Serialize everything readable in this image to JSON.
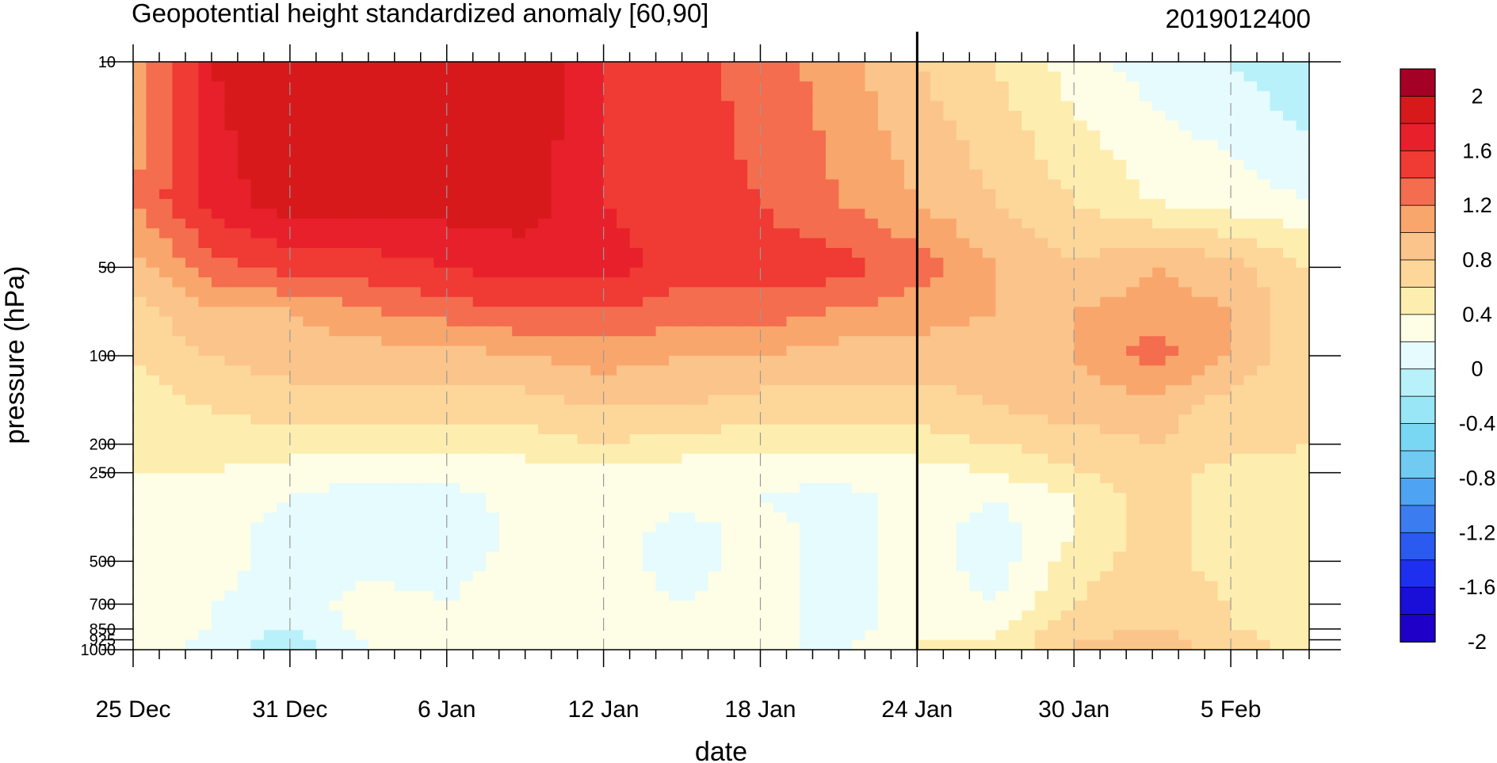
{
  "chart_data": {
    "type": "heatmap",
    "title": "Geopotential height standardized anomaly [60,90]",
    "run_label": "2019012400",
    "xlabel": "date",
    "ylabel": "pressure (hPa)",
    "y_scale": "log",
    "y_reversed": true,
    "ylim": [
      1000,
      10
    ],
    "x_tick_labels": [
      {
        "day": 0,
        "label": "25 Dec"
      },
      {
        "day": 6,
        "label": "31 Dec"
      },
      {
        "day": 12,
        "label": "6 Jan"
      },
      {
        "day": 18,
        "label": "12 Jan"
      },
      {
        "day": 24,
        "label": "18 Jan"
      },
      {
        "day": 30,
        "label": "24 Jan"
      },
      {
        "day": 36,
        "label": "30 Jan"
      },
      {
        "day": 42,
        "label": "5 Feb"
      }
    ],
    "xlim_days": [
      0,
      45
    ],
    "y_ticks": [
      10,
      50,
      100,
      200,
      250,
      500,
      700,
      850,
      925,
      1000
    ],
    "y_tick_labels": [
      "10",
      "50",
      "100",
      "200",
      "250",
      "500",
      "700",
      "850",
      "925",
      "1000"
    ],
    "analysis_marker_day": 30,
    "contour_levels": [
      -2,
      -1.8,
      -1.6,
      -1.4,
      -1.2,
      -1,
      -0.8,
      -0.6,
      -0.4,
      -0.2,
      0,
      0.2,
      0.4,
      0.6,
      0.8,
      1,
      1.2,
      1.4,
      1.6,
      1.8,
      2
    ],
    "colorbar": {
      "label_values": [
        "2",
        "1.6",
        "1.2",
        "0.8",
        "0.4",
        "0",
        "-0.4",
        "-0.8",
        "-1.2",
        "-1.6",
        "-2"
      ],
      "colors": [
        "#a50026",
        "#d7191c",
        "#e8202b",
        "#f03a34",
        "#f46d4e",
        "#f9a66c",
        "#fbc48a",
        "#fdd699",
        "#fdeeb0",
        "#fefde6",
        "#e5fbfd",
        "#b9f1fa",
        "#98e6f6",
        "#7ad7f4",
        "#70caf2",
        "#4ea4f2",
        "#3b7df0",
        "#2a5af0",
        "#1e2ff0",
        "#1a0fd8",
        "#1f00c8"
      ]
    },
    "field_pressure_levels": [
      10,
      30,
      50,
      70,
      100,
      150,
      200,
      250,
      300,
      400,
      500,
      700,
      850,
      925,
      1000
    ],
    "field_days": [
      0,
      3,
      6,
      9,
      12,
      15,
      18,
      21,
      24,
      27,
      30,
      33,
      36,
      39,
      42,
      45
    ],
    "field_values": [
      [
        0.8,
        1.6,
        1.8,
        1.8,
        1.8,
        1.8,
        1.4,
        1.3,
        1.1,
        0.9,
        0.6,
        0.4,
        0.1,
        -0.1,
        -0.2,
        -0.4
      ],
      [
        1.0,
        1.5,
        1.7,
        1.7,
        1.7,
        1.7,
        1.4,
        1.3,
        1.2,
        1.0,
        0.8,
        0.6,
        0.4,
        0.2,
        0.1,
        0.0
      ],
      [
        0.7,
        1.1,
        1.3,
        1.3,
        1.4,
        1.5,
        1.5,
        1.3,
        1.3,
        1.3,
        1.1,
        0.8,
        0.6,
        0.8,
        0.7,
        0.4
      ],
      [
        0.5,
        0.8,
        0.8,
        1.0,
        1.1,
        1.2,
        1.2,
        1.1,
        1.1,
        1.0,
        0.9,
        0.8,
        0.8,
        0.9,
        0.8,
        0.4
      ],
      [
        0.4,
        0.6,
        0.7,
        0.7,
        0.7,
        0.8,
        0.9,
        0.8,
        0.8,
        0.7,
        0.7,
        0.7,
        0.8,
        1.1,
        0.8,
        0.4
      ],
      [
        0.3,
        0.4,
        0.5,
        0.5,
        0.5,
        0.5,
        0.6,
        0.6,
        0.5,
        0.5,
        0.5,
        0.6,
        0.7,
        0.7,
        0.5,
        0.4
      ],
      [
        0.2,
        0.3,
        0.3,
        0.3,
        0.3,
        0.3,
        0.4,
        0.3,
        0.3,
        0.3,
        0.3,
        0.4,
        0.5,
        0.6,
        0.5,
        0.4
      ],
      [
        0.2,
        0.2,
        0.1,
        0.1,
        0.1,
        0.1,
        0.1,
        0.1,
        0.1,
        0.1,
        0.1,
        0.2,
        0.4,
        0.5,
        0.3,
        0.3
      ],
      [
        0.2,
        0.1,
        0.0,
        -0.1,
        -0.1,
        0.1,
        0.2,
        0.1,
        0.0,
        -0.1,
        0.1,
        0.0,
        0.2,
        0.5,
        0.3,
        0.2
      ],
      [
        0.2,
        0.1,
        -0.1,
        -0.2,
        -0.2,
        0.1,
        0.1,
        -0.1,
        0.1,
        -0.1,
        0.1,
        -0.1,
        0.2,
        0.5,
        0.3,
        0.2
      ],
      [
        0.2,
        0.1,
        -0.1,
        -0.1,
        -0.1,
        0.1,
        0.1,
        -0.1,
        0.1,
        -0.1,
        0.1,
        -0.1,
        0.3,
        0.5,
        0.3,
        0.2
      ],
      [
        0.2,
        0.0,
        -0.1,
        0.1,
        0.0,
        0.2,
        0.1,
        0.0,
        0.1,
        -0.1,
        0.1,
        0.0,
        0.4,
        0.6,
        0.4,
        0.3
      ],
      [
        0.2,
        0.0,
        -0.2,
        0.1,
        0.0,
        0.2,
        0.1,
        0.0,
        0.1,
        -0.1,
        0.1,
        0.2,
        0.5,
        0.6,
        0.4,
        0.3
      ],
      [
        0.2,
        -0.1,
        -0.3,
        0.0,
        0.0,
        0.2,
        0.1,
        0.0,
        0.1,
        -0.1,
        0.2,
        0.2,
        0.6,
        0.7,
        0.5,
        0.3
      ],
      [
        0.2,
        -0.1,
        -0.3,
        0.0,
        0.0,
        0.2,
        0.1,
        0.0,
        0.0,
        0.0,
        0.2,
        0.3,
        0.6,
        0.7,
        0.5,
        0.3
      ]
    ]
  }
}
